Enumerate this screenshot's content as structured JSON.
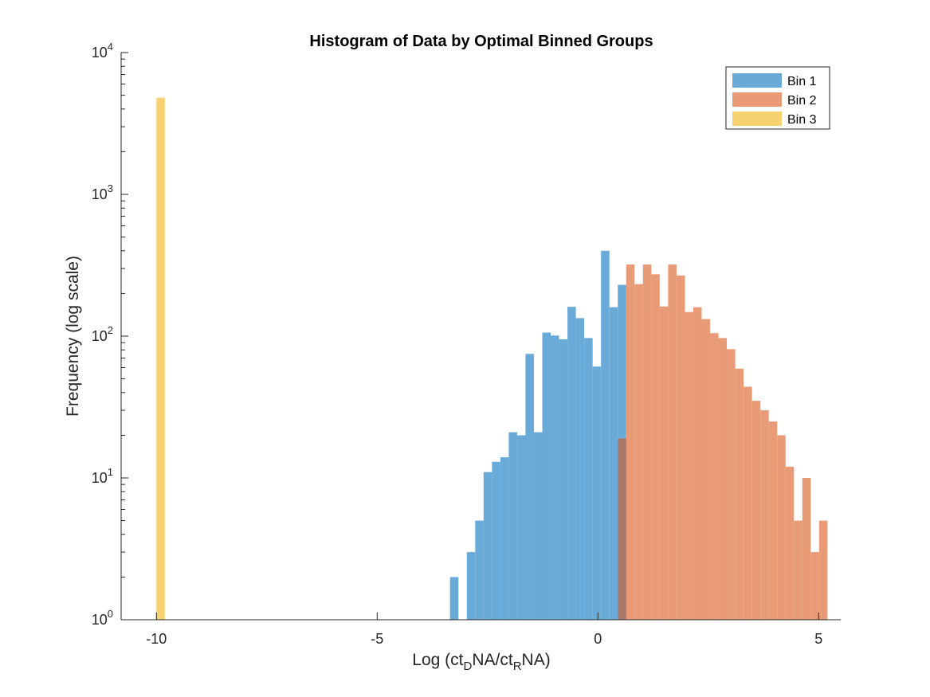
{
  "chart_data": {
    "type": "bar",
    "title": "Histogram of Data by Optimal Binned Groups",
    "xlabel": {
      "prefix": "Log (ct",
      "sub1": "D",
      "mid": "NA/ct",
      "sub2": "R",
      "suffix": "NA)"
    },
    "ylabel": "Frequency (log scale)",
    "xlim": [
      -10.8,
      5.5
    ],
    "ylim": [
      1,
      10000
    ],
    "yscale": "log",
    "xticks": [
      {
        "value": -10,
        "label": "-10"
      },
      {
        "value": -5,
        "label": "-5"
      },
      {
        "value": 0,
        "label": "0"
      },
      {
        "value": 5,
        "label": "5"
      }
    ],
    "yticks": [
      {
        "value": 1,
        "base": "10",
        "exp": "0"
      },
      {
        "value": 10,
        "base": "10",
        "exp": "1"
      },
      {
        "value": 100,
        "base": "10",
        "exp": "2"
      },
      {
        "value": 1000,
        "base": "10",
        "exp": "3"
      },
      {
        "value": 10000,
        "base": "10",
        "exp": "4"
      }
    ],
    "bin_width": 0.19,
    "legend_position": "top-right",
    "grid": false,
    "series": [
      {
        "name": "Bin 1",
        "color": "#6aaad8",
        "bins": [
          {
            "x0": -3.35,
            "y": 2
          },
          {
            "x0": -2.97,
            "y": 3
          },
          {
            "x0": -2.78,
            "y": 5
          },
          {
            "x0": -2.59,
            "y": 11
          },
          {
            "x0": -2.4,
            "y": 13
          },
          {
            "x0": -2.21,
            "y": 14
          },
          {
            "x0": -2.02,
            "y": 21
          },
          {
            "x0": -1.83,
            "y": 20
          },
          {
            "x0": -1.64,
            "y": 75
          },
          {
            "x0": -1.45,
            "y": 21
          },
          {
            "x0": -1.26,
            "y": 106
          },
          {
            "x0": -1.07,
            "y": 101
          },
          {
            "x0": -0.88,
            "y": 95
          },
          {
            "x0": -0.69,
            "y": 161
          },
          {
            "x0": -0.5,
            "y": 134
          },
          {
            "x0": -0.31,
            "y": 97
          },
          {
            "x0": -0.12,
            "y": 61
          },
          {
            "x0": 0.07,
            "y": 400
          },
          {
            "x0": 0.26,
            "y": 160
          },
          {
            "x0": 0.45,
            "y": 230
          }
        ]
      },
      {
        "name": "Bin 2",
        "color": "#e99b77",
        "bins": [
          {
            "x0": 0.45,
            "y": 19
          },
          {
            "x0": 0.64,
            "y": 320
          },
          {
            "x0": 0.83,
            "y": 233
          },
          {
            "x0": 1.02,
            "y": 320
          },
          {
            "x0": 1.21,
            "y": 273
          },
          {
            "x0": 1.4,
            "y": 162
          },
          {
            "x0": 1.59,
            "y": 320
          },
          {
            "x0": 1.78,
            "y": 268
          },
          {
            "x0": 1.97,
            "y": 148
          },
          {
            "x0": 2.16,
            "y": 160
          },
          {
            "x0": 2.35,
            "y": 132
          },
          {
            "x0": 2.54,
            "y": 105
          },
          {
            "x0": 2.73,
            "y": 97
          },
          {
            "x0": 2.92,
            "y": 81
          },
          {
            "x0": 3.11,
            "y": 59
          },
          {
            "x0": 3.3,
            "y": 44
          },
          {
            "x0": 3.49,
            "y": 35
          },
          {
            "x0": 3.68,
            "y": 30
          },
          {
            "x0": 3.87,
            "y": 25
          },
          {
            "x0": 4.06,
            "y": 20
          },
          {
            "x0": 4.25,
            "y": 12
          },
          {
            "x0": 4.44,
            "y": 5
          },
          {
            "x0": 4.63,
            "y": 10
          },
          {
            "x0": 4.82,
            "y": 3
          },
          {
            "x0": 5.01,
            "y": 5
          }
        ]
      },
      {
        "name": "Bin 3",
        "color": "#f7d070",
        "bins": [
          {
            "x0": -10.0,
            "y": 4800
          }
        ]
      }
    ]
  }
}
